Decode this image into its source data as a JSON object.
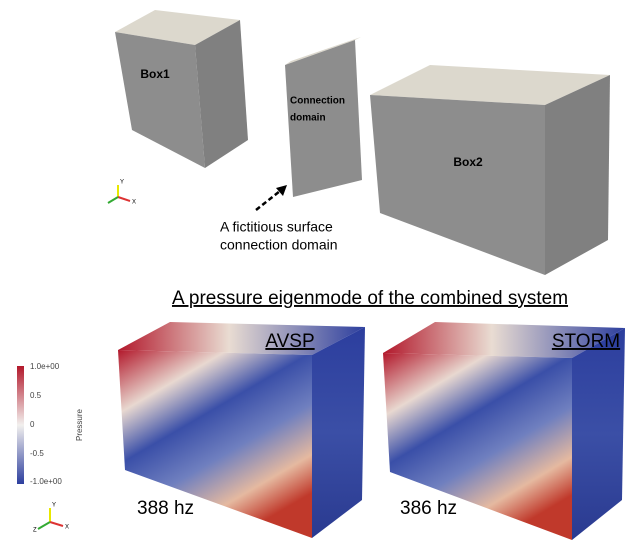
{
  "top": {
    "box1": "Box1",
    "connection_lines": [
      "Connection",
      "domain"
    ],
    "box2": "Box2",
    "annotation_lines": [
      "A fictitious surface",
      "connection domain"
    ]
  },
  "section_title": "A pressure eigenmode of the combined system",
  "colorbar": {
    "title": "Pressure",
    "labels": [
      "1.0e+00",
      "0.5",
      "0",
      "-0.5",
      "-1.0e+00"
    ]
  },
  "panels": [
    {
      "label": "AVSP",
      "frequency": "388 hz"
    },
    {
      "label": "STORM",
      "frequency": "386 hz"
    }
  ],
  "axis_labels": [
    "Y",
    "X",
    "Z"
  ]
}
